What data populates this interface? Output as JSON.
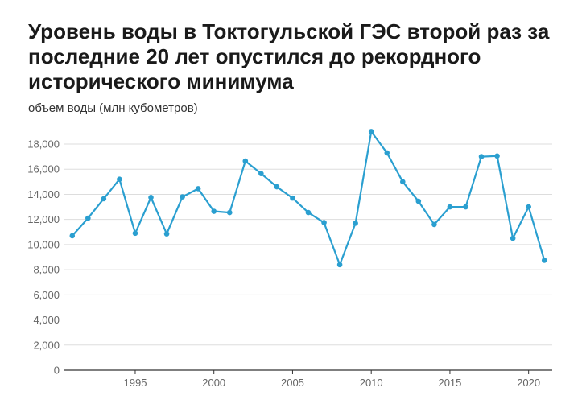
{
  "chart_data": {
    "type": "line",
    "title": "Уровень воды в Токтогульской ГЭС второй раз за последние 20 лет опустился до рекордного исторического минимума",
    "subtitle": "объем воды (млн кубометров)",
    "xlabel": "",
    "ylabel": "объем воды (млн кубометров)",
    "xlim": [
      1990.5,
      2021.5
    ],
    "ylim": [
      0,
      18000
    ],
    "x_ticks": [
      1995,
      2000,
      2005,
      2010,
      2015,
      2020
    ],
    "x_tick_labels": [
      "1995",
      "2000",
      "2005",
      "2010",
      "2015",
      "2020"
    ],
    "y_ticks": [
      0,
      2000,
      4000,
      6000,
      8000,
      10000,
      12000,
      14000,
      16000,
      18000
    ],
    "y_tick_labels": [
      "0",
      "2,000",
      "4,000",
      "6,000",
      "8,000",
      "10,000",
      "12,000",
      "14,000",
      "16,000",
      "18,000"
    ],
    "grid": true,
    "legend": "none",
    "line_color": "#2a9fd0",
    "series": [
      {
        "x": [
          1991,
          1992,
          1993,
          1994,
          1995,
          1996,
          1997,
          1998,
          1999,
          2000,
          2001,
          2002,
          2003,
          2004,
          2005,
          2006,
          2007,
          2008,
          2009,
          2010,
          2011,
          2012,
          2013,
          2014,
          2015,
          2016,
          2017,
          2018,
          2019,
          2020,
          2021
        ],
        "values": [
          10700,
          12100,
          13650,
          15200,
          10900,
          13750,
          10850,
          13800,
          14450,
          12650,
          12550,
          16650,
          15650,
          14600,
          13700,
          12550,
          11750,
          8400,
          11700,
          19000,
          17300,
          15000,
          13450,
          11600,
          13000,
          13000,
          17000,
          17050,
          10500,
          13000,
          8750
        ]
      }
    ]
  }
}
